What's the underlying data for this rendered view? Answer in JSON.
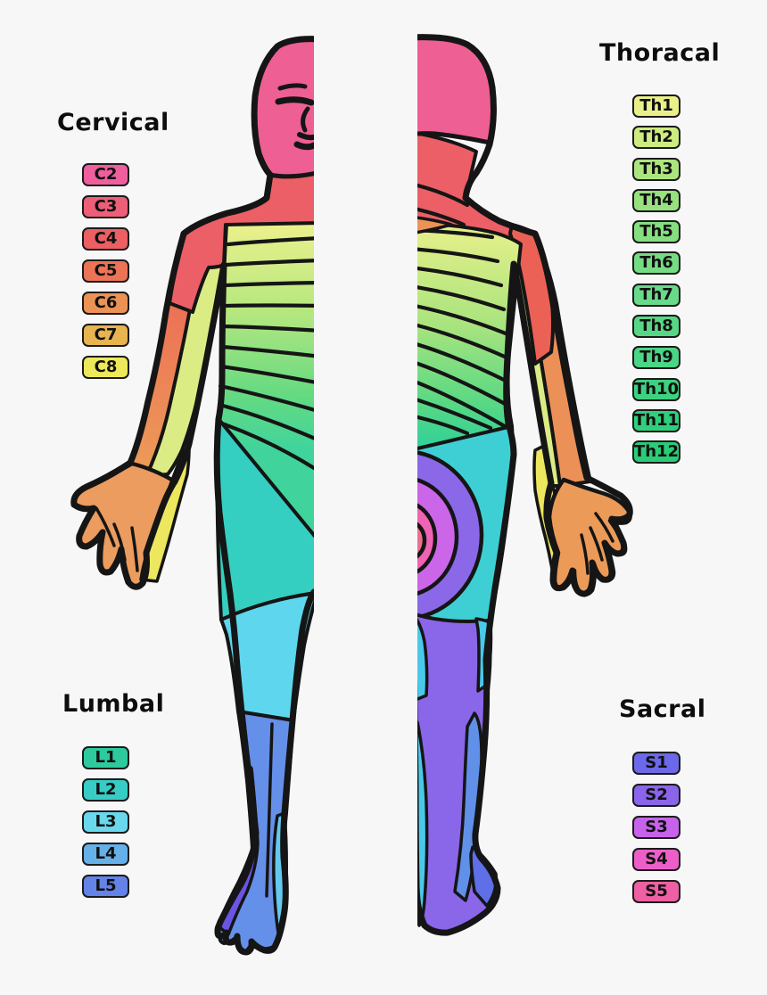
{
  "page": {
    "background": "#f7f7f7",
    "ink": "#151515"
  },
  "sections": {
    "cervical": {
      "title": "Cervical",
      "items": [
        {
          "label": "C2",
          "color": "#ee5f9e"
        },
        {
          "label": "C3",
          "color": "#ed5f78"
        },
        {
          "label": "C4",
          "color": "#ec5f62"
        },
        {
          "label": "C5",
          "color": "#ec7356"
        },
        {
          "label": "C6",
          "color": "#eb9355"
        },
        {
          "label": "C7",
          "color": "#e7b450"
        },
        {
          "label": "C8",
          "color": "#ede95a"
        }
      ]
    },
    "thoracal": {
      "title": "Thoracal",
      "items": [
        {
          "label": "Th1",
          "color": "#e9f08a"
        },
        {
          "label": "Th2",
          "color": "#cdeb80"
        },
        {
          "label": "Th3",
          "color": "#ace57e"
        },
        {
          "label": "Th4",
          "color": "#97e17e"
        },
        {
          "label": "Th5",
          "color": "#86df7f"
        },
        {
          "label": "Th6",
          "color": "#76dc84"
        },
        {
          "label": "Th7",
          "color": "#68da89"
        },
        {
          "label": "Th8",
          "color": "#57d785"
        },
        {
          "label": "Th9",
          "color": "#4bd586"
        },
        {
          "label": "Th10",
          "color": "#3cd280"
        },
        {
          "label": "Th11",
          "color": "#2fd07b"
        },
        {
          "label": "Th12",
          "color": "#29cc77"
        }
      ]
    },
    "lumbal": {
      "title": "Lumbal",
      "items": [
        {
          "label": "L1",
          "color": "#2eca9e"
        },
        {
          "label": "L2",
          "color": "#37cdc6"
        },
        {
          "label": "L3",
          "color": "#69d8ec"
        },
        {
          "label": "L4",
          "color": "#66b0e9"
        },
        {
          "label": "L5",
          "color": "#6383e7"
        }
      ]
    },
    "sacral": {
      "title": "Sacral",
      "items": [
        {
          "label": "S1",
          "color": "#6b68e9"
        },
        {
          "label": "S2",
          "color": "#8a64e9"
        },
        {
          "label": "S3",
          "color": "#c763ea"
        },
        {
          "label": "S4",
          "color": "#ec5fc9"
        },
        {
          "label": "S5",
          "color": "#ee5fa4"
        }
      ]
    }
  }
}
